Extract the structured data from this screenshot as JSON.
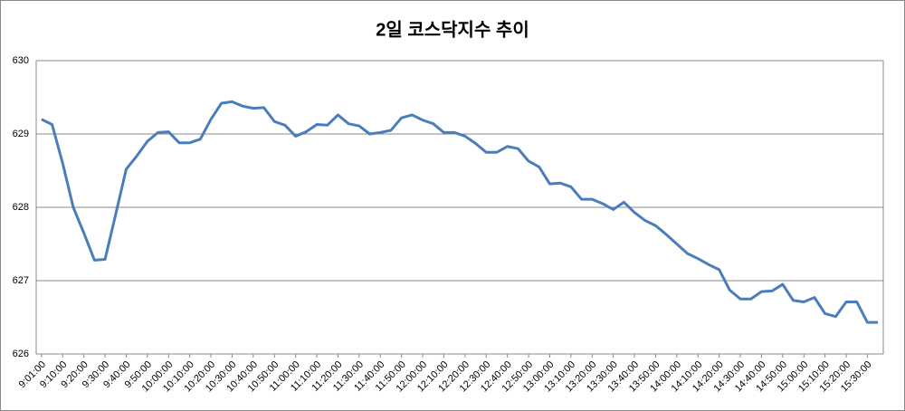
{
  "chart_data": {
    "type": "line",
    "title": "2일 코스닥지수 추이",
    "categories": [
      "9:01:00",
      null,
      "9:10:00",
      null,
      "9:20:00",
      null,
      "9:30:00",
      null,
      "9:40:00",
      null,
      "9:50:00",
      null,
      "10:00:00",
      null,
      "10:10:00",
      null,
      "10:20:00",
      null,
      "10:30:00",
      null,
      "10:40:00",
      null,
      "10:50:00",
      null,
      "11:00:00",
      null,
      "11:10:00",
      null,
      "11:20:00",
      null,
      "11:30:00",
      null,
      "11:40:00",
      null,
      "11:50:00",
      null,
      "12:00:00",
      null,
      "12:10:00",
      null,
      "12:20:00",
      null,
      "12:30:00",
      null,
      "12:40:00",
      null,
      "12:50:00",
      null,
      "13:00:00",
      null,
      "13:10:00",
      null,
      "13:20:00",
      null,
      "13:30:00",
      null,
      "13:40:00",
      null,
      "13:50:00",
      null,
      "14:00:00",
      null,
      "14:10:00",
      null,
      "14:20:00",
      null,
      "14:30:00",
      null,
      "14:40:00",
      null,
      "14:50:00",
      null,
      "15:00:00",
      null,
      "15:10:00",
      null,
      "15:20:00",
      null,
      "15:30:00",
      null
    ],
    "series": [
      {
        "color": "#4a7ebb",
        "values": [
          629.2,
          629.13,
          628.6,
          628.0,
          627.65,
          627.28,
          627.29,
          627.9,
          628.52,
          628.7,
          628.9,
          629.02,
          629.03,
          628.88,
          628.88,
          628.93,
          629.2,
          629.42,
          629.44,
          629.38,
          629.35,
          629.36,
          629.17,
          629.12,
          628.97,
          629.03,
          629.13,
          629.12,
          629.26,
          629.14,
          629.11,
          629.0,
          629.02,
          629.05,
          629.22,
          629.26,
          629.19,
          629.14,
          629.02,
          629.02,
          628.97,
          628.87,
          628.75,
          628.75,
          628.83,
          628.8,
          628.63,
          628.55,
          628.32,
          628.33,
          628.28,
          628.11,
          628.11,
          628.05,
          627.97,
          628.07,
          627.93,
          627.82,
          627.75,
          627.63,
          627.5,
          627.37,
          627.3,
          627.22,
          627.15,
          626.87,
          626.75,
          626.75,
          626.85,
          626.86,
          626.95,
          626.73,
          626.71,
          626.77,
          626.55,
          626.51,
          626.71,
          626.71,
          626.43,
          626.43
        ]
      }
    ],
    "ylim": [
      626,
      630
    ],
    "yticks": [
      626,
      627,
      628,
      629,
      630
    ],
    "grid": true
  }
}
